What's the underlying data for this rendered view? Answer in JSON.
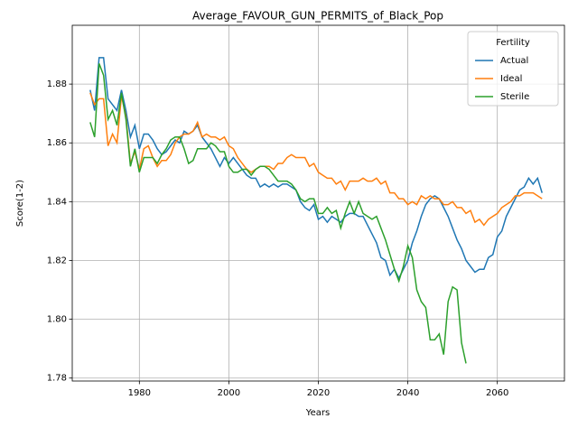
{
  "chart_data": {
    "type": "line",
    "title": "Average_FAVOUR_GUN_PERMITS_of_Black_Pop",
    "x_label": "Years",
    "y_label": "Score(1-2)",
    "x": [
      1969,
      1970,
      1971,
      1972,
      1973,
      1974,
      1975,
      1976,
      1977,
      1978,
      1979,
      1980,
      1981,
      1982,
      1983,
      1984,
      1985,
      1986,
      1987,
      1988,
      1989,
      1990,
      1991,
      1992,
      1993,
      1994,
      1995,
      1996,
      1997,
      1998,
      1999,
      2000,
      2001,
      2002,
      2003,
      2004,
      2005,
      2006,
      2007,
      2008,
      2009,
      2010,
      2011,
      2012,
      2013,
      2014,
      2015,
      2016,
      2017,
      2018,
      2019,
      2020,
      2021,
      2022,
      2023,
      2024,
      2025,
      2026,
      2027,
      2028,
      2029,
      2030,
      2031,
      2032,
      2033,
      2034,
      2035,
      2036,
      2037,
      2038,
      2039,
      2040,
      2041,
      2042,
      2043,
      2044,
      2045,
      2046,
      2047,
      2048,
      2049,
      2050,
      2051,
      2052,
      2053,
      2054,
      2055,
      2056,
      2057,
      2058,
      2059,
      2060,
      2061,
      2062,
      2063,
      2064,
      2065,
      2066,
      2067,
      2068,
      2069,
      2070
    ],
    "series": [
      {
        "name": "Actual",
        "color": "#1f77b4",
        "values": [
          1.878,
          1.871,
          1.889,
          1.889,
          1.875,
          1.873,
          1.871,
          1.878,
          1.871,
          1.862,
          1.866,
          1.858,
          1.863,
          1.863,
          1.861,
          1.858,
          1.856,
          1.857,
          1.859,
          1.861,
          1.86,
          1.864,
          1.863,
          1.864,
          1.866,
          1.862,
          1.86,
          1.858,
          1.855,
          1.852,
          1.855,
          1.853,
          1.855,
          1.853,
          1.851,
          1.849,
          1.848,
          1.848,
          1.845,
          1.846,
          1.845,
          1.846,
          1.845,
          1.846,
          1.846,
          1.845,
          1.844,
          1.84,
          1.838,
          1.837,
          1.839,
          1.834,
          1.835,
          1.833,
          1.835,
          1.834,
          1.833,
          1.835,
          1.836,
          1.836,
          1.835,
          1.835,
          1.832,
          1.829,
          1.826,
          1.821,
          1.82,
          1.815,
          1.817,
          1.814,
          1.817,
          1.82,
          1.826,
          1.83,
          1.835,
          1.839,
          1.841,
          1.842,
          1.841,
          1.838,
          1.835,
          1.831,
          1.827,
          1.824,
          1.82,
          1.818,
          1.816,
          1.817,
          1.817,
          1.821,
          1.822,
          1.828,
          1.83,
          1.835,
          1.838,
          1.841,
          1.844,
          1.845,
          1.848,
          1.846,
          1.848,
          1.843
        ]
      },
      {
        "name": "Ideal",
        "color": "#ff7f0e",
        "values": [
          1.877,
          1.873,
          1.875,
          1.875,
          1.859,
          1.863,
          1.86,
          1.876,
          1.869,
          1.853,
          1.857,
          1.851,
          1.858,
          1.859,
          1.855,
          1.852,
          1.854,
          1.854,
          1.856,
          1.86,
          1.862,
          1.863,
          1.863,
          1.864,
          1.867,
          1.862,
          1.863,
          1.862,
          1.862,
          1.861,
          1.862,
          1.859,
          1.858,
          1.855,
          1.853,
          1.851,
          1.85,
          1.851,
          1.852,
          1.852,
          1.852,
          1.851,
          1.853,
          1.853,
          1.855,
          1.856,
          1.855,
          1.855,
          1.855,
          1.852,
          1.853,
          1.85,
          1.849,
          1.848,
          1.848,
          1.846,
          1.847,
          1.844,
          1.847,
          1.847,
          1.847,
          1.848,
          1.847,
          1.847,
          1.848,
          1.846,
          1.847,
          1.843,
          1.843,
          1.841,
          1.841,
          1.839,
          1.84,
          1.839,
          1.842,
          1.841,
          1.842,
          1.841,
          1.841,
          1.839,
          1.839,
          1.84,
          1.838,
          1.838,
          1.836,
          1.837,
          1.833,
          1.834,
          1.832,
          1.834,
          1.835,
          1.836,
          1.838,
          1.839,
          1.84,
          1.842,
          1.842,
          1.843,
          1.843,
          1.843,
          1.842,
          1.841
        ]
      },
      {
        "name": "Sterile",
        "color": "#2ca02c",
        "values": [
          1.867,
          1.862,
          1.887,
          1.883,
          1.868,
          1.871,
          1.866,
          1.877,
          1.868,
          1.852,
          1.858,
          1.85,
          1.855,
          1.855,
          1.855,
          1.853,
          1.856,
          1.858,
          1.861,
          1.862,
          1.862,
          1.858,
          1.853,
          1.854,
          1.858,
          1.858,
          1.858,
          1.86,
          1.859,
          1.857,
          1.857,
          1.852,
          1.85,
          1.85,
          1.851,
          1.851,
          1.849,
          1.851,
          1.852,
          1.852,
          1.851,
          1.849,
          1.847,
          1.847,
          1.847,
          1.846,
          1.844,
          1.841,
          1.84,
          1.841,
          1.841,
          1.836,
          1.836,
          1.838,
          1.836,
          1.837,
          1.831,
          1.836,
          1.84,
          1.836,
          1.84,
          1.836,
          1.835,
          1.834,
          1.835,
          1.831,
          1.827,
          1.822,
          1.817,
          1.813,
          1.818,
          1.825,
          1.821,
          1.81,
          1.806,
          1.804,
          1.793,
          1.793,
          1.795,
          1.788,
          1.806,
          1.811,
          1.81,
          1.792,
          1.785,
          null,
          null,
          null,
          null,
          null,
          null,
          null,
          null,
          null,
          null,
          null,
          null,
          null,
          null,
          null,
          null,
          null
        ]
      }
    ],
    "xlim": [
      1965,
      2075
    ],
    "ylim": [
      1.779,
      1.9
    ],
    "xticks": [
      1980,
      2000,
      2020,
      2040,
      2060
    ],
    "yticks": [
      {
        "value": 1.78,
        "label": "1.78"
      },
      {
        "value": 1.8,
        "label": "1.80"
      },
      {
        "value": 1.82,
        "label": "1.82"
      },
      {
        "value": 1.84,
        "label": "1.84"
      },
      {
        "value": 1.86,
        "label": "1.86"
      },
      {
        "value": 1.88,
        "label": "1.88"
      }
    ],
    "grid": true,
    "legend_title": "Fertility",
    "legend_position": "upper right"
  }
}
